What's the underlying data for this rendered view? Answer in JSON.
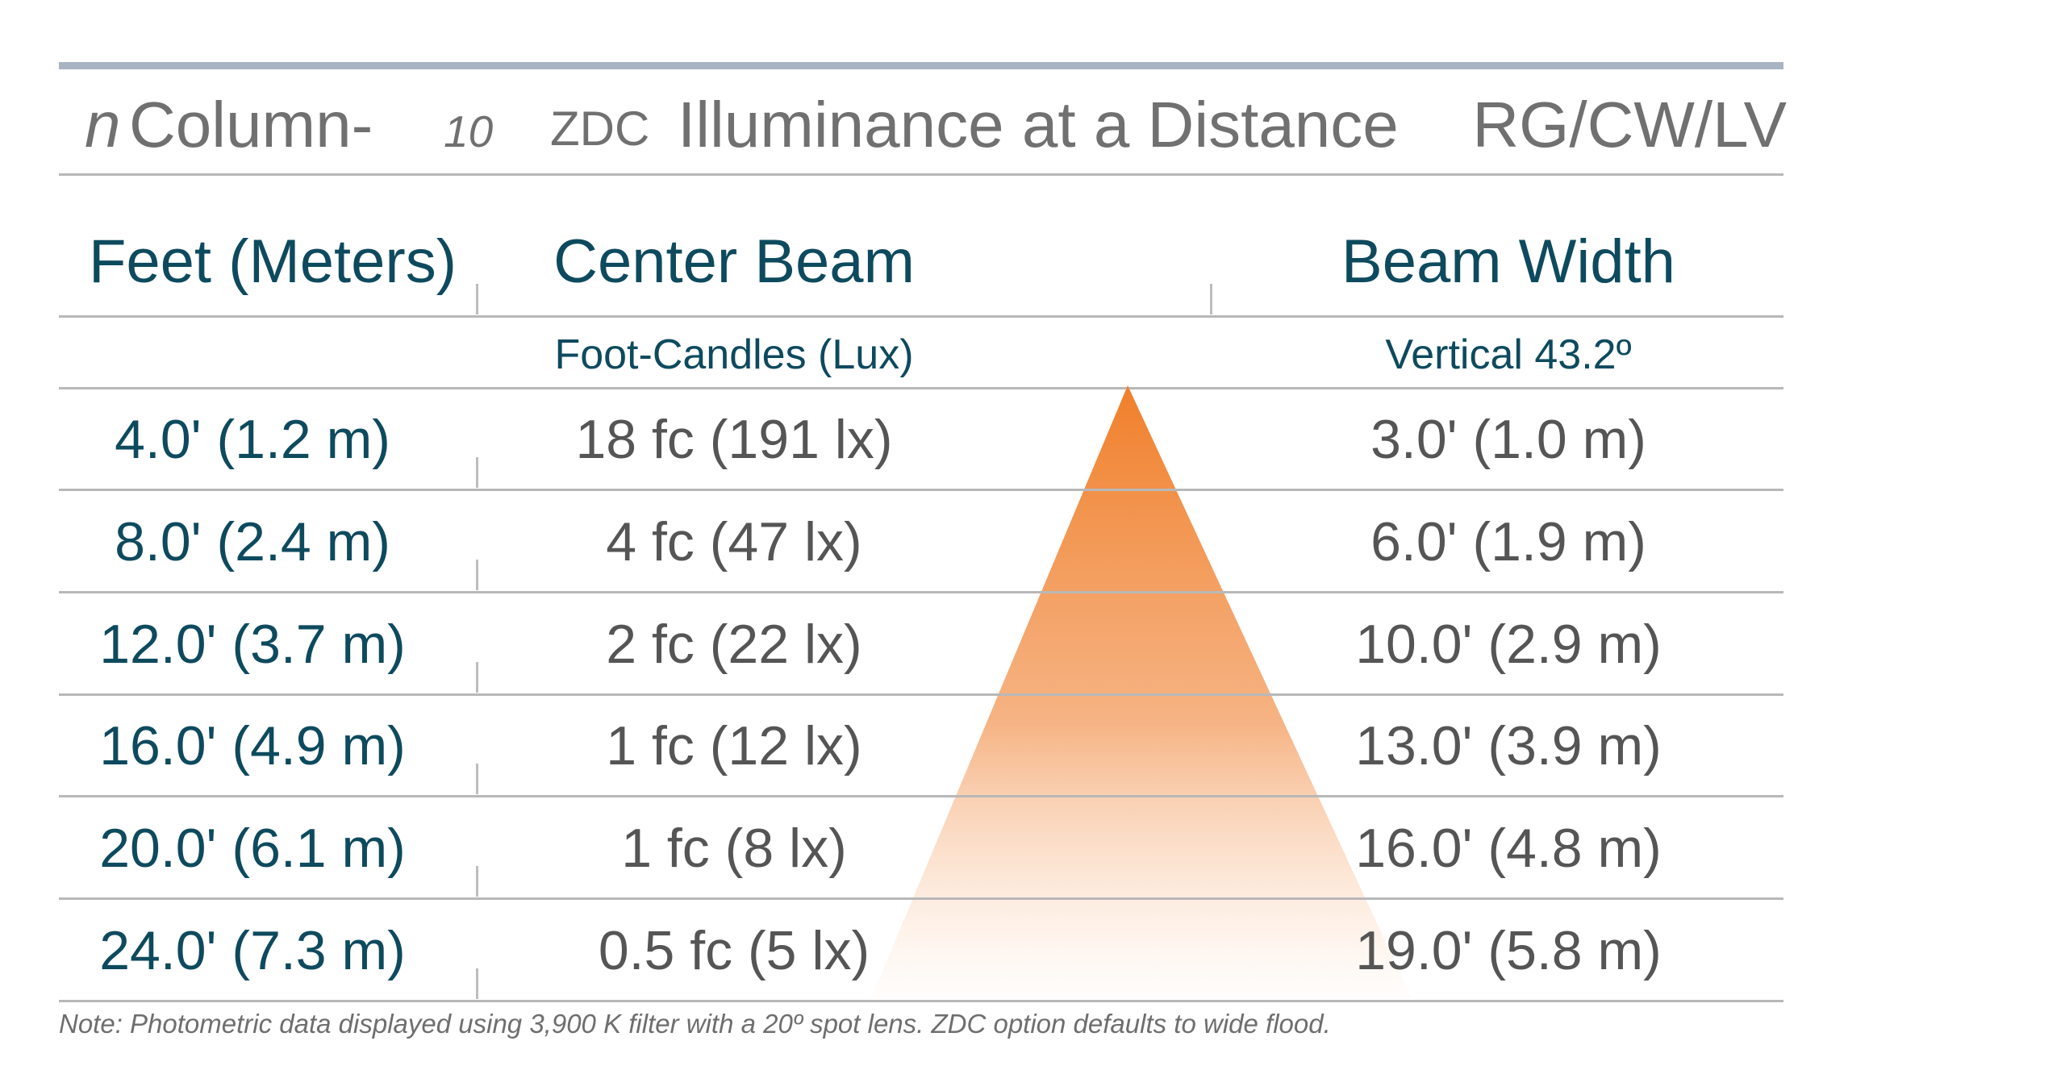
{
  "header": {
    "product_prefix": "n",
    "product_name": "Column-",
    "product_size": "10",
    "option": "ZDC",
    "title": "Illuminance at a Distance",
    "color_codes": "RG/CW/LV"
  },
  "table": {
    "columns": [
      "Feet (Meters)",
      "Center Beam",
      "Beam Width"
    ],
    "subheaders": {
      "center_beam": "Foot-Candles (Lux)",
      "beam_width": "Vertical 43.2º"
    },
    "rows": [
      {
        "distance": "4.0' (1.2 m)",
        "center_beam": "18 fc (191 lx)",
        "beam_width": "3.0' (1.0 m)"
      },
      {
        "distance": "8.0' (2.4 m)",
        "center_beam": "4 fc (47 lx)",
        "beam_width": "6.0' (1.9 m)"
      },
      {
        "distance": "12.0' (3.7 m)",
        "center_beam": "2 fc (22 lx)",
        "beam_width": "10.0' (2.9 m)"
      },
      {
        "distance": "16.0' (4.9 m)",
        "center_beam": "1 fc (12 lx)",
        "beam_width": "13.0' (3.9 m)"
      },
      {
        "distance": "20.0' (6.1 m)",
        "center_beam": "1 fc (8 lx)",
        "beam_width": "16.0' (4.8 m)"
      },
      {
        "distance": "24.0' (7.3 m)",
        "center_beam": "0.5 fc (5 lx)",
        "beam_width": "19.0' (5.8 m)"
      }
    ]
  },
  "note": "Note: Photometric data displayed using 3,900 K filter with a 20º spot lens. ZDC option defaults to wide flood.",
  "colors": {
    "title_gray": "#707070",
    "heading_teal": "#0e4a5e",
    "value_gray": "#555555",
    "rule_gray": "#b8b8b8",
    "top_bar": "#a9b4c2",
    "beam_orange": "#f07f2a"
  }
}
